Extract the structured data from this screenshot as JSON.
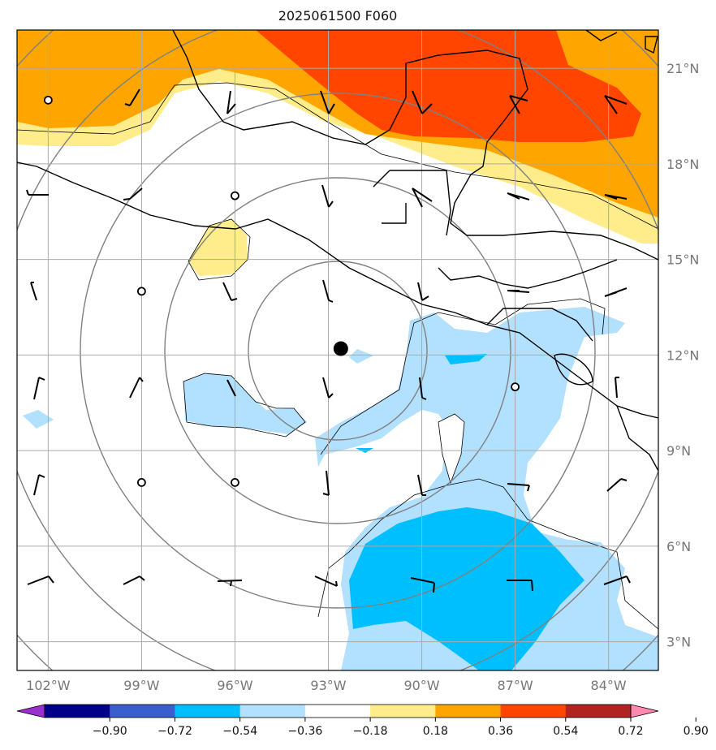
{
  "title": "2025061500 F060",
  "map": {
    "lon_range": [
      -103,
      -82.4
    ],
    "lat_range": [
      2.1,
      22.2
    ],
    "lon_labels": [
      "102°W",
      "99°W",
      "96°W",
      "93°W",
      "90°W",
      "87°W",
      "84°W"
    ],
    "lat_labels": [
      "3°N",
      "6°N",
      "9°N",
      "12°N",
      "15°N",
      "18°N",
      "21°N"
    ],
    "center_marker": {
      "lon": -92.6,
      "lat": 12.2
    },
    "calm_wind_stations": [
      {
        "lon": -102,
        "lat": 20
      },
      {
        "lon": -96,
        "lat": 17
      },
      {
        "lon": -99,
        "lat": 14
      },
      {
        "lon": -87,
        "lat": 11
      },
      {
        "lon": -99,
        "lat": 8
      },
      {
        "lon": -96,
        "lat": 8
      }
    ]
  },
  "colorbar": {
    "ticks": [
      "−0.90",
      "−0.72",
      "−0.54",
      "−0.36",
      "−0.18",
      "0.18",
      "0.36",
      "0.54",
      "0.72",
      "0.90"
    ],
    "colors": [
      "#9b30d0",
      "#00008b",
      "#3a5fcd",
      "#00bfff",
      "#b2e0ff",
      "#ffffff",
      "#ffec8b",
      "#ffa500",
      "#ff4500",
      "#b22222",
      "#ff88b0"
    ]
  },
  "style": {
    "frame_color": "#000000",
    "grid_color": "#aaaaaa",
    "circle_color": "#808080",
    "coast_color": "#000000"
  }
}
